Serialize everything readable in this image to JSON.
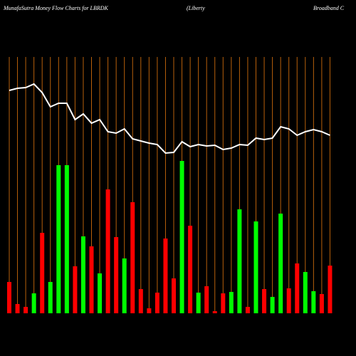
{
  "chart_data": {
    "type": "money-flow",
    "title": "MunafaSutra  Money Flow  Charts for LBRDK",
    "subtitle_parts": [
      "(Liberty",
      "Broadband C"
    ],
    "categories": [
      null,
      null,
      null,
      null,
      null,
      null,
      null,
      null,
      null,
      null,
      null,
      null,
      null,
      null,
      null,
      null,
      null,
      null,
      null,
      null,
      null,
      null,
      null,
      null,
      null,
      null,
      null,
      null,
      null,
      null,
      null,
      null,
      null,
      null,
      null,
      null,
      null,
      null,
      null,
      null
    ],
    "ylim": [
      0,
      360
    ],
    "bars": {
      "values": [
        44,
        13,
        9,
        28,
        113,
        44,
        208,
        208,
        66,
        108,
        94,
        56,
        174,
        107,
        77,
        156,
        34,
        7,
        29,
        105,
        49,
        214,
        123,
        29,
        38,
        3,
        28,
        30,
        146,
        9,
        129,
        34,
        23,
        140,
        35,
        70,
        58,
        31,
        27,
        67
      ],
      "colors": [
        "#ff0000",
        "#ff0000",
        "#ff0000",
        "#00ff00",
        "#ff0000",
        "#00ff00",
        "#00ff00",
        "#00ff00",
        "#ff0000",
        "#00ff00",
        "#ff0000",
        "#00ff00",
        "#ff0000",
        "#ff0000",
        "#00ff00",
        "#ff0000",
        "#ff0000",
        "#ff0000",
        "#ff0000",
        "#ff0000",
        "#ff0000",
        "#00ff00",
        "#ff0000",
        "#00ff00",
        "#ff0000",
        "#ff0000",
        "#ff0000",
        "#00ff00",
        "#00ff00",
        "#ff0000",
        "#00ff00",
        "#ff0000",
        "#00ff00",
        "#00ff00",
        "#ff0000",
        "#ff0000",
        "#00ff00",
        "#00ff00",
        "#ff0000",
        "#ff0000"
      ]
    },
    "line": {
      "color": "#ffffff",
      "values": [
        313,
        316,
        317,
        322,
        310,
        290,
        295,
        295,
        272,
        280,
        267,
        272,
        255,
        253,
        259,
        245,
        242,
        239,
        237,
        225,
        226,
        241,
        234,
        237,
        235,
        236,
        230,
        232,
        237,
        236,
        246,
        244,
        246,
        262,
        259,
        250,
        255,
        258,
        255,
        250
      ]
    },
    "gridline_color": "#b8600b",
    "background": "#000000"
  }
}
